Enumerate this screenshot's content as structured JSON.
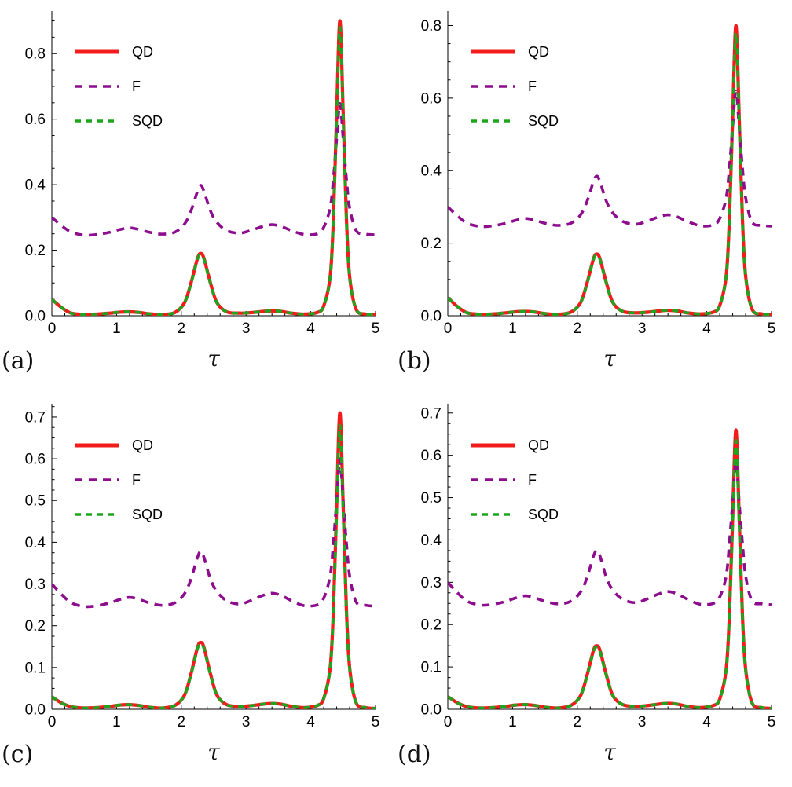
{
  "figure": {
    "background": "#ffffff",
    "legend_position": "top-left"
  },
  "chart_data": {
    "type": "line",
    "x": [
      0,
      0.15,
      0.3,
      0.5,
      0.7,
      0.9,
      1.05,
      1.2,
      1.35,
      1.5,
      1.7,
      1.9,
      2.05,
      2.15,
      2.25,
      2.3,
      2.35,
      2.45,
      2.55,
      2.7,
      2.9,
      3.1,
      3.25,
      3.4,
      3.55,
      3.7,
      3.9,
      4.1,
      4.2,
      4.3,
      4.35,
      4.4,
      4.45,
      4.5,
      4.55,
      4.6,
      4.7,
      4.85,
      5.0
    ],
    "panels": [
      {
        "id": "a",
        "label": "(a)",
        "xlabel": "τ",
        "xlim": [
          0,
          5
        ],
        "ylim": [
          0,
          0.93
        ],
        "xticks": [
          0,
          1,
          2,
          3,
          4,
          5
        ],
        "xtick_labels": [
          "0",
          "1",
          "2",
          "3",
          "4",
          "5"
        ],
        "yticks": [
          0,
          0.2,
          0.4,
          0.6,
          0.8
        ],
        "ytick_labels": [
          "0.0",
          "0.2",
          "0.4",
          "0.6",
          "0.8"
        ],
        "x_minor_step": 0.2,
        "y_minor_step": 0.05,
        "series": [
          {
            "name": "QD",
            "color": "#f31c1c",
            "style": "solid",
            "width": 4.2,
            "values": [
              0.05,
              0.025,
              0.008,
              0.004,
              0.005,
              0.008,
              0.011,
              0.012,
              0.01,
              0.006,
              0.004,
              0.01,
              0.04,
              0.1,
              0.175,
              0.19,
              0.175,
              0.1,
              0.04,
              0.012,
              0.008,
              0.01,
              0.013,
              0.015,
              0.013,
              0.008,
              0.005,
              0.01,
              0.03,
              0.12,
              0.3,
              0.62,
              0.9,
              0.62,
              0.3,
              0.12,
              0.02,
              0.005,
              0.003
            ]
          },
          {
            "name": "F",
            "color": "#8e0d8e",
            "style": "dashed",
            "dash": [
              10,
              8
            ],
            "width": 3.6,
            "values": [
              0.3,
              0.275,
              0.255,
              0.246,
              0.248,
              0.255,
              0.263,
              0.268,
              0.263,
              0.255,
              0.249,
              0.255,
              0.28,
              0.32,
              0.38,
              0.398,
              0.38,
              0.32,
              0.285,
              0.26,
              0.252,
              0.262,
              0.272,
              0.278,
              0.272,
              0.26,
              0.248,
              0.25,
              0.27,
              0.33,
              0.42,
              0.54,
              0.648,
              0.54,
              0.42,
              0.33,
              0.26,
              0.249,
              0.247
            ]
          },
          {
            "name": "SQD",
            "color": "#1ea51e",
            "style": "dashed",
            "dash": [
              8,
              6
            ],
            "width": 3.6,
            "values": [
              0.05,
              0.025,
              0.008,
              0.004,
              0.005,
              0.008,
              0.011,
              0.012,
              0.01,
              0.006,
              0.004,
              0.01,
              0.04,
              0.098,
              0.172,
              0.187,
              0.172,
              0.098,
              0.04,
              0.012,
              0.008,
              0.01,
              0.013,
              0.015,
              0.013,
              0.008,
              0.005,
              0.01,
              0.03,
              0.118,
              0.295,
              0.605,
              0.88,
              0.605,
              0.295,
              0.118,
              0.02,
              0.005,
              0.003
            ]
          }
        ]
      },
      {
        "id": "b",
        "label": "(b)",
        "xlabel": "τ",
        "xlim": [
          0,
          5
        ],
        "ylim": [
          0,
          0.84
        ],
        "xticks": [
          0,
          1,
          2,
          3,
          4,
          5
        ],
        "xtick_labels": [
          "0",
          "1",
          "2",
          "3",
          "4",
          "5"
        ],
        "yticks": [
          0,
          0.2,
          0.4,
          0.6,
          0.8
        ],
        "ytick_labels": [
          "0.0",
          "0.2",
          "0.4",
          "0.6",
          "0.8"
        ],
        "x_minor_step": 0.2,
        "y_minor_step": 0.05,
        "series": [
          {
            "name": "QD",
            "color": "#f31c1c",
            "style": "solid",
            "width": 4.2,
            "values": [
              0.05,
              0.025,
              0.008,
              0.004,
              0.005,
              0.008,
              0.011,
              0.012,
              0.01,
              0.006,
              0.004,
              0.01,
              0.036,
              0.09,
              0.157,
              0.17,
              0.157,
              0.09,
              0.036,
              0.012,
              0.008,
              0.01,
              0.013,
              0.015,
              0.013,
              0.008,
              0.005,
              0.01,
              0.028,
              0.11,
              0.27,
              0.55,
              0.8,
              0.55,
              0.27,
              0.11,
              0.018,
              0.005,
              0.003
            ]
          },
          {
            "name": "F",
            "color": "#8e0d8e",
            "style": "dashed",
            "dash": [
              10,
              8
            ],
            "width": 3.6,
            "values": [
              0.3,
              0.275,
              0.255,
              0.246,
              0.248,
              0.255,
              0.263,
              0.268,
              0.263,
              0.255,
              0.249,
              0.255,
              0.278,
              0.315,
              0.37,
              0.385,
              0.37,
              0.315,
              0.283,
              0.26,
              0.252,
              0.262,
              0.272,
              0.278,
              0.272,
              0.26,
              0.248,
              0.25,
              0.268,
              0.325,
              0.41,
              0.52,
              0.62,
              0.52,
              0.41,
              0.325,
              0.258,
              0.249,
              0.247
            ]
          },
          {
            "name": "SQD",
            "color": "#1ea51e",
            "style": "dashed",
            "dash": [
              8,
              6
            ],
            "width": 3.6,
            "values": [
              0.05,
              0.025,
              0.008,
              0.004,
              0.005,
              0.008,
              0.011,
              0.012,
              0.01,
              0.006,
              0.004,
              0.01,
              0.036,
              0.088,
              0.155,
              0.167,
              0.155,
              0.088,
              0.036,
              0.012,
              0.008,
              0.01,
              0.013,
              0.015,
              0.013,
              0.008,
              0.005,
              0.01,
              0.028,
              0.108,
              0.265,
              0.54,
              0.78,
              0.54,
              0.265,
              0.108,
              0.018,
              0.005,
              0.003
            ]
          }
        ]
      },
      {
        "id": "c",
        "label": "(c)",
        "xlabel": "τ",
        "xlim": [
          0,
          5
        ],
        "ylim": [
          0,
          0.73
        ],
        "xticks": [
          0,
          1,
          2,
          3,
          4,
          5
        ],
        "xtick_labels": [
          "0",
          "1",
          "2",
          "3",
          "4",
          "5"
        ],
        "yticks": [
          0,
          0.1,
          0.2,
          0.3,
          0.4,
          0.5,
          0.6,
          0.7
        ],
        "ytick_labels": [
          "0.0",
          "0.1",
          "0.2",
          "0.3",
          "0.4",
          "0.5",
          "0.6",
          "0.7"
        ],
        "x_minor_step": 0.2,
        "y_minor_step": 0.025,
        "series": [
          {
            "name": "QD",
            "color": "#f31c1c",
            "style": "solid",
            "width": 4.2,
            "values": [
              0.03,
              0.015,
              0.006,
              0.003,
              0.004,
              0.007,
              0.01,
              0.011,
              0.009,
              0.005,
              0.003,
              0.009,
              0.034,
              0.085,
              0.148,
              0.16,
              0.148,
              0.085,
              0.034,
              0.011,
              0.007,
              0.009,
              0.012,
              0.014,
              0.012,
              0.007,
              0.004,
              0.009,
              0.026,
              0.1,
              0.24,
              0.49,
              0.71,
              0.49,
              0.24,
              0.1,
              0.016,
              0.004,
              0.002
            ]
          },
          {
            "name": "F",
            "color": "#8e0d8e",
            "style": "dashed",
            "dash": [
              10,
              8
            ],
            "width": 3.6,
            "values": [
              0.3,
              0.275,
              0.255,
              0.246,
              0.248,
              0.255,
              0.263,
              0.268,
              0.263,
              0.255,
              0.249,
              0.255,
              0.277,
              0.312,
              0.364,
              0.378,
              0.364,
              0.312,
              0.282,
              0.26,
              0.252,
              0.262,
              0.272,
              0.278,
              0.272,
              0.26,
              0.248,
              0.25,
              0.266,
              0.32,
              0.4,
              0.5,
              0.6,
              0.5,
              0.4,
              0.32,
              0.257,
              0.249,
              0.247
            ]
          },
          {
            "name": "SQD",
            "color": "#1ea51e",
            "style": "dashed",
            "dash": [
              8,
              6
            ],
            "width": 3.6,
            "values": [
              0.03,
              0.015,
              0.006,
              0.003,
              0.004,
              0.007,
              0.01,
              0.011,
              0.009,
              0.005,
              0.003,
              0.009,
              0.034,
              0.083,
              0.145,
              0.156,
              0.145,
              0.083,
              0.034,
              0.011,
              0.007,
              0.009,
              0.012,
              0.014,
              0.012,
              0.007,
              0.004,
              0.009,
              0.026,
              0.098,
              0.235,
              0.47,
              0.68,
              0.47,
              0.235,
              0.098,
              0.016,
              0.004,
              0.002
            ]
          }
        ]
      },
      {
        "id": "d",
        "label": "(d)",
        "xlabel": "τ",
        "xlim": [
          0,
          5
        ],
        "ylim": [
          0,
          0.72
        ],
        "xticks": [
          0,
          1,
          2,
          3,
          4,
          5
        ],
        "xtick_labels": [
          "0",
          "1",
          "2",
          "3",
          "4",
          "5"
        ],
        "yticks": [
          0,
          0.1,
          0.2,
          0.3,
          0.4,
          0.5,
          0.6,
          0.7
        ],
        "ytick_labels": [
          "0.0",
          "0.1",
          "0.2",
          "0.3",
          "0.4",
          "0.5",
          "0.6",
          "0.7"
        ],
        "x_minor_step": 0.2,
        "y_minor_step": 0.025,
        "series": [
          {
            "name": "QD",
            "color": "#f31c1c",
            "style": "solid",
            "width": 4.2,
            "values": [
              0.03,
              0.015,
              0.006,
              0.003,
              0.004,
              0.007,
              0.01,
              0.011,
              0.009,
              0.005,
              0.003,
              0.009,
              0.032,
              0.08,
              0.139,
              0.15,
              0.139,
              0.08,
              0.032,
              0.011,
              0.007,
              0.009,
              0.012,
              0.014,
              0.012,
              0.007,
              0.004,
              0.009,
              0.024,
              0.095,
              0.225,
              0.455,
              0.66,
              0.455,
              0.225,
              0.095,
              0.015,
              0.004,
              0.002
            ]
          },
          {
            "name": "F",
            "color": "#8e0d8e",
            "style": "dashed",
            "dash": [
              10,
              8
            ],
            "width": 3.6,
            "values": [
              0.3,
              0.275,
              0.255,
              0.246,
              0.248,
              0.255,
              0.263,
              0.268,
              0.263,
              0.255,
              0.249,
              0.255,
              0.277,
              0.311,
              0.362,
              0.375,
              0.362,
              0.311,
              0.281,
              0.26,
              0.252,
              0.262,
              0.272,
              0.278,
              0.272,
              0.26,
              0.248,
              0.25,
              0.265,
              0.315,
              0.395,
              0.49,
              0.585,
              0.49,
              0.395,
              0.315,
              0.256,
              0.249,
              0.247
            ]
          },
          {
            "name": "SQD",
            "color": "#1ea51e",
            "style": "dashed",
            "dash": [
              8,
              6
            ],
            "width": 3.6,
            "values": [
              0.03,
              0.015,
              0.006,
              0.003,
              0.004,
              0.007,
              0.01,
              0.011,
              0.009,
              0.005,
              0.003,
              0.009,
              0.032,
              0.078,
              0.136,
              0.147,
              0.136,
              0.078,
              0.032,
              0.011,
              0.007,
              0.009,
              0.012,
              0.014,
              0.012,
              0.007,
              0.004,
              0.009,
              0.024,
              0.093,
              0.22,
              0.44,
              0.635,
              0.44,
              0.22,
              0.093,
              0.015,
              0.004,
              0.002
            ]
          }
        ]
      }
    ]
  }
}
